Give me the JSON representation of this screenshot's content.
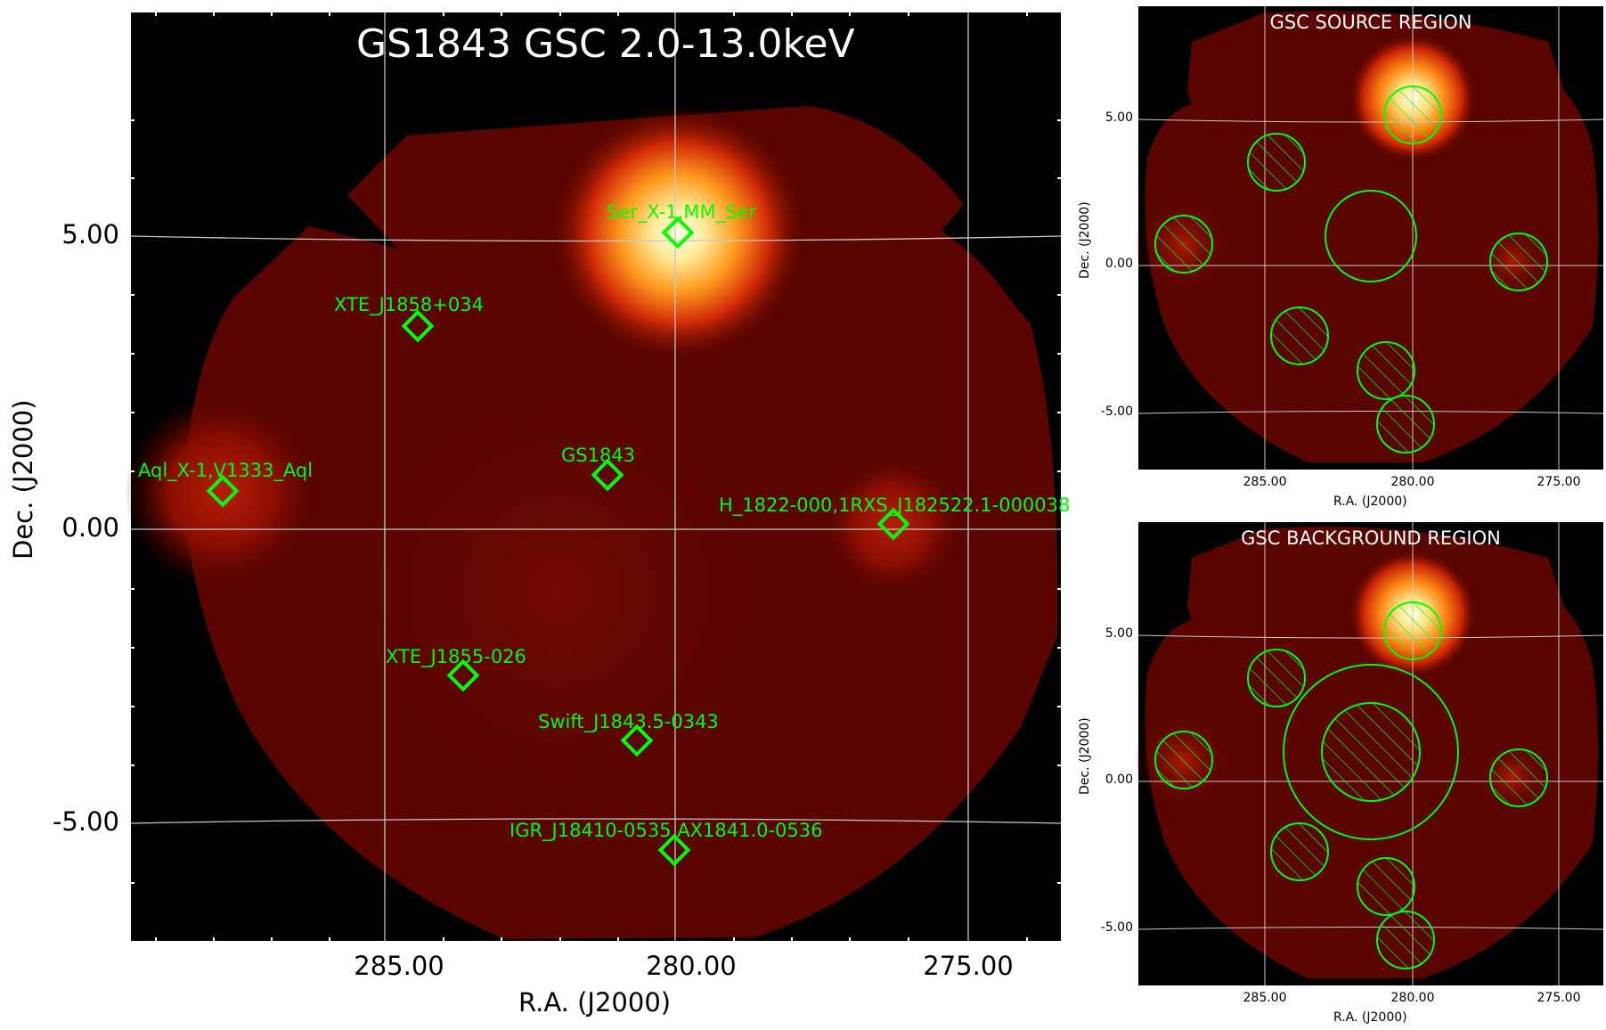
{
  "main": {
    "title": "GS1843 GSC 2.0-13.0keV",
    "xlabel": "R.A. (J2000)",
    "ylabel": "Dec. (J2000)",
    "xticks": [
      "285.00",
      "280.00",
      "275.00"
    ],
    "yticks": [
      "5.00",
      "0.00",
      "-5.00"
    ],
    "sources": [
      {
        "label": "Ser_X-1,MM_Ser"
      },
      {
        "label": "XTE_J1858+034"
      },
      {
        "label": "GS1843"
      },
      {
        "label": "Aql_X-1,V1333_Aql"
      },
      {
        "label": "H_1822-000,1RXS_J182522.1-000038"
      },
      {
        "label": "XTE_J1855-026"
      },
      {
        "label": "Swift_J1843.5-0343"
      },
      {
        "label": "IGR_J18410-0535,AX1841.0-0536"
      }
    ]
  },
  "source_region": {
    "title": "GSC SOURCE REGION",
    "xlabel": "R.A. (J2000)",
    "ylabel": "Dec. (J2000)",
    "xticks": [
      "285.00",
      "280.00",
      "275.00"
    ],
    "yticks": [
      "5.00",
      "0.00",
      "-5.00"
    ]
  },
  "background_region": {
    "title": "GSC BACKGROUND REGION",
    "xlabel": "R.A. (J2000)",
    "ylabel": "Dec. (J2000)",
    "xticks": [
      "285.00",
      "280.00",
      "275.00"
    ],
    "yticks": [
      "5.00",
      "0.00",
      "-5.00"
    ]
  },
  "colors": {
    "marker": "#00ff00",
    "grid": "#c8c8c8",
    "image_base": "#5a0500"
  }
}
